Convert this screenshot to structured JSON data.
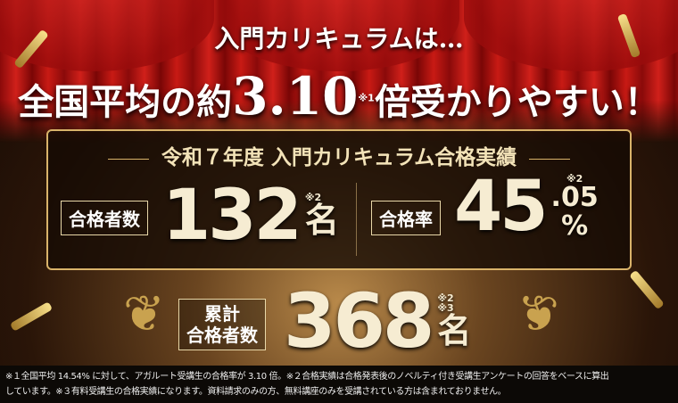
{
  "headline": {
    "line1": "入門カリキュラムは…",
    "line2_pre": "全国平均の約",
    "line2_number": "3.10",
    "line2_note": "※1",
    "line2_post": "倍受かりやすい！"
  },
  "panel": {
    "title": "令和７年度 入門カリキュラム合格実績",
    "passers": {
      "label": "合格者数",
      "value": "132",
      "note": "※2",
      "unit": "名"
    },
    "rate": {
      "label": "合格率",
      "value": "45",
      "decimal": ".05",
      "note": "※2",
      "unit": "%"
    }
  },
  "cumulative": {
    "label_line1": "累計",
    "label_line2": "合格者数",
    "value": "368",
    "note1": "※2",
    "note2": "※3",
    "unit": "名"
  },
  "footnote": {
    "line1": "※１全国平均 14.54% に対して、アガルート受講生の合格率が 3.10 倍。※２合格実績は合格発表後のノベルティ付き受講生アンケートの回答をベースに算出",
    "line2": "しています。※３有料受講生の合格実績になります。資料請求のみの方、無料講座のみを受講されている方は含まれておりません。"
  }
}
